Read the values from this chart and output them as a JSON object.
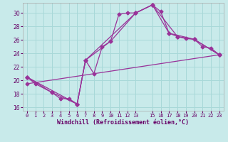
{
  "xlabel": "Windchill (Refroidissement éolien,°C)",
  "background_color": "#c8eaea",
  "grid_color": "#a8d8d8",
  "line_color": "#993399",
  "xlim": [
    -0.5,
    23.5
  ],
  "ylim": [
    15.5,
    31.5
  ],
  "xticks": [
    0,
    1,
    2,
    3,
    4,
    5,
    6,
    7,
    8,
    9,
    10,
    11,
    12,
    13,
    15,
    16,
    17,
    18,
    19,
    20,
    21,
    22,
    23
  ],
  "yticks": [
    16,
    18,
    20,
    22,
    24,
    26,
    28,
    30
  ],
  "series": [
    {
      "x": [
        0,
        1,
        3,
        4,
        5,
        6,
        7,
        8,
        9,
        10,
        11,
        12,
        13,
        15,
        16,
        17,
        18,
        19,
        20,
        21,
        22,
        23
      ],
      "y": [
        20.5,
        19.5,
        18.2,
        17.3,
        17.3,
        16.5,
        23.0,
        21.0,
        25.0,
        25.8,
        29.8,
        30.0,
        30.0,
        31.2,
        30.2,
        27.0,
        26.5,
        26.2,
        26.1,
        25.0,
        24.8,
        23.8
      ]
    },
    {
      "x": [
        0,
        3,
        6,
        7,
        10,
        13,
        15,
        17,
        20,
        23
      ],
      "y": [
        20.5,
        18.2,
        16.5,
        23.0,
        25.8,
        30.0,
        31.2,
        27.0,
        26.1,
        23.8
      ]
    },
    {
      "x": [
        0,
        23
      ],
      "y": [
        19.5,
        23.8
      ]
    },
    {
      "x": [
        0,
        6,
        7,
        13,
        15,
        18,
        20,
        23
      ],
      "y": [
        20.5,
        16.5,
        23.0,
        30.0,
        31.2,
        26.5,
        26.1,
        23.8
      ]
    }
  ]
}
